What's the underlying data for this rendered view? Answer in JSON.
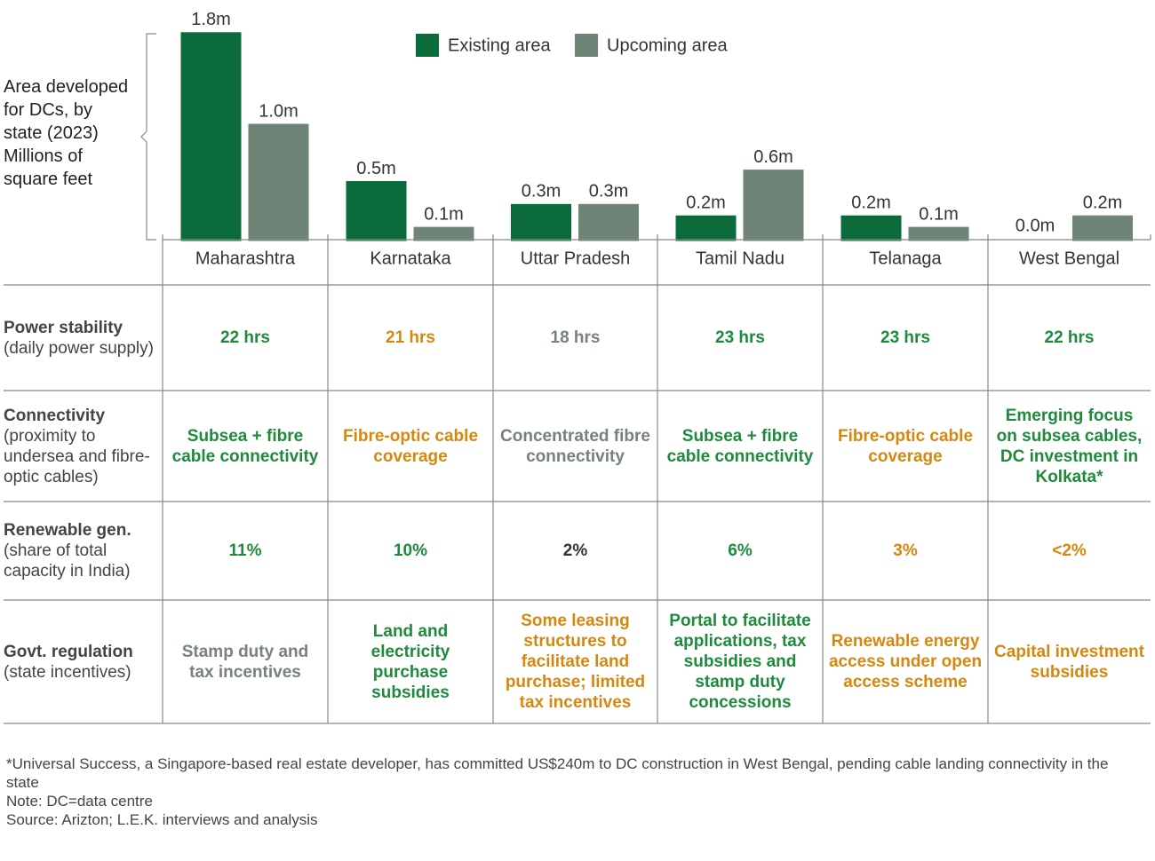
{
  "chart_data": {
    "type": "bar",
    "y_label": [
      "Area developed",
      "for DCs, by",
      "state (2023)",
      "Millions of",
      "square feet"
    ],
    "categories": [
      "Maharashtra",
      "Karnataka",
      "Uttar Pradesh",
      "Tamil Nadu",
      "Telanaga",
      "West Bengal"
    ],
    "series": [
      {
        "name": "Existing area",
        "color": "#0b6b3b",
        "values": [
          1.8,
          0.5,
          0.3,
          0.2,
          0.2,
          0.0
        ],
        "value_labels": [
          "1.8m",
          "0.5m",
          "0.3m",
          "0.2m",
          "0.2m",
          "0.0m"
        ]
      },
      {
        "name": "Upcoming area",
        "color": "#6e8476",
        "values": [
          1.0,
          0.1,
          0.3,
          0.6,
          0.1,
          0.2
        ],
        "value_labels": [
          "1.0m",
          "0.1m",
          "0.3m",
          "0.6m",
          "0.1m",
          "0.2m"
        ]
      }
    ],
    "legend": "top"
  },
  "table": {
    "rows": [
      {
        "title": "Power stability",
        "subtitle": "(daily power supply)",
        "cells": [
          {
            "text": "22 hrs",
            "color": "#1e8a3c"
          },
          {
            "text": "21 hrs",
            "color": "#d6870f"
          },
          {
            "text": "18 hrs",
            "color": "#75837a"
          },
          {
            "text": "23 hrs",
            "color": "#1e8a3c"
          },
          {
            "text": "23 hrs",
            "color": "#1e8a3c"
          },
          {
            "text": "22 hrs",
            "color": "#1e8a3c"
          }
        ]
      },
      {
        "title": "Connectivity",
        "subtitle": "(proximity to undersea and fibre-optic cables)",
        "cells": [
          {
            "text": "Subsea + fibre cable connectivity",
            "color": "#1e8a3c"
          },
          {
            "text": "Fibre-optic cable coverage",
            "color": "#d6870f"
          },
          {
            "text": "Concentrated fibre connectivity",
            "color": "#75837a"
          },
          {
            "text": "Subsea + fibre cable connectivity",
            "color": "#1e8a3c"
          },
          {
            "text": "Fibre-optic cable coverage",
            "color": "#d6870f"
          },
          {
            "text": "Emerging focus on subsea cables, DC investment in Kolkata*",
            "color": "#1e8a3c"
          }
        ]
      },
      {
        "title": "Renewable gen.",
        "subtitle": "(share of total capacity in India)",
        "cells": [
          {
            "text": "11%",
            "color": "#1e8a3c"
          },
          {
            "text": "10%",
            "color": "#1e8a3c"
          },
          {
            "text": "2%",
            "color": "#333333"
          },
          {
            "text": "6%",
            "color": "#1e8a3c"
          },
          {
            "text": "3%",
            "color": "#d6870f"
          },
          {
            "text": "<2%",
            "color": "#d6870f"
          }
        ]
      },
      {
        "title": "Govt. regulation",
        "subtitle": "(state incentives)",
        "cells": [
          {
            "text": "Stamp duty and tax incentives",
            "color": "#75837a"
          },
          {
            "text": "Land and electricity purchase subsidies",
            "color": "#1e8a3c"
          },
          {
            "text": "Some leasing structures to facilitate land purchase; limited tax incentives",
            "color": "#d6870f"
          },
          {
            "text": "Portal to facilitate applications, tax subsidies and stamp duty concessions",
            "color": "#1e8a3c"
          },
          {
            "text": "Renewable energy access under open access scheme",
            "color": "#d6870f"
          },
          {
            "text": "Capital investment subsidies",
            "color": "#d6870f"
          }
        ]
      }
    ]
  },
  "footnotes": [
    "*Universal Success, a Singapore-based real estate developer, has committed US$240m to DC construction in West Bengal, pending cable landing connectivity in the state",
    "Note: DC=data centre",
    "Source: Arizton; L.E.K. interviews and analysis"
  ]
}
